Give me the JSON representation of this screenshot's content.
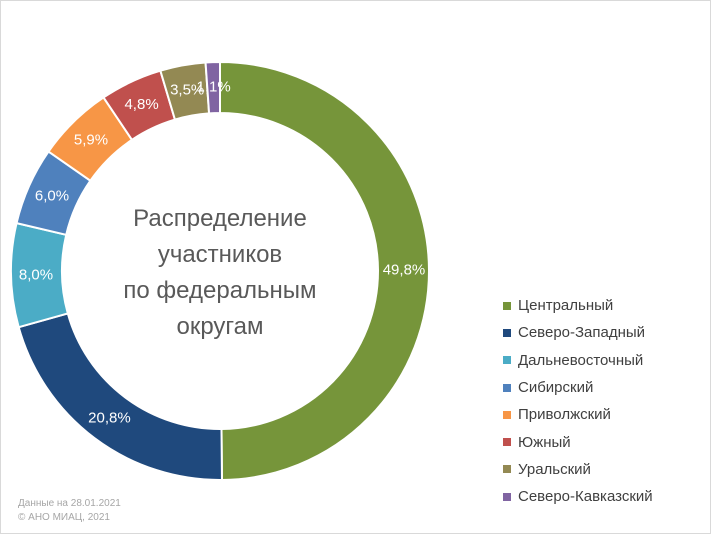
{
  "chart_data": {
    "type": "pie",
    "donut": true,
    "title": "Распределение участников по федеральным округам",
    "title_lines": [
      "Распределение",
      "участников",
      "по федеральным",
      "округам"
    ],
    "legend_position": "right",
    "slices": [
      {
        "label": "Центральный",
        "value": 49.8,
        "display": "49,8%",
        "color": "#76953a"
      },
      {
        "label": "Северо-Западный",
        "value": 20.8,
        "display": "20,8%",
        "color": "#1f497d"
      },
      {
        "label": "Дальневосточный",
        "value": 8.0,
        "display": "8,0%",
        "color": "#4bacc6"
      },
      {
        "label": "Сибирский",
        "value": 6.0,
        "display": "6,0%",
        "color": "#4f81bd"
      },
      {
        "label": "Приволжский",
        "value": 5.9,
        "display": "5,9%",
        "color": "#f79646"
      },
      {
        "label": "Южный",
        "value": 4.8,
        "display": "4,8%",
        "color": "#c0504d"
      },
      {
        "label": "Уральский",
        "value": 3.5,
        "display": "3,5%",
        "color": "#938953"
      },
      {
        "label": "Северо-Кавказский",
        "value": 1.1,
        "display": "1,1%",
        "color": "#8064a2"
      }
    ]
  },
  "footnote": {
    "line1": "Данные на 28.01.2021",
    "line2": "© АНО МИАЦ, 2021"
  }
}
